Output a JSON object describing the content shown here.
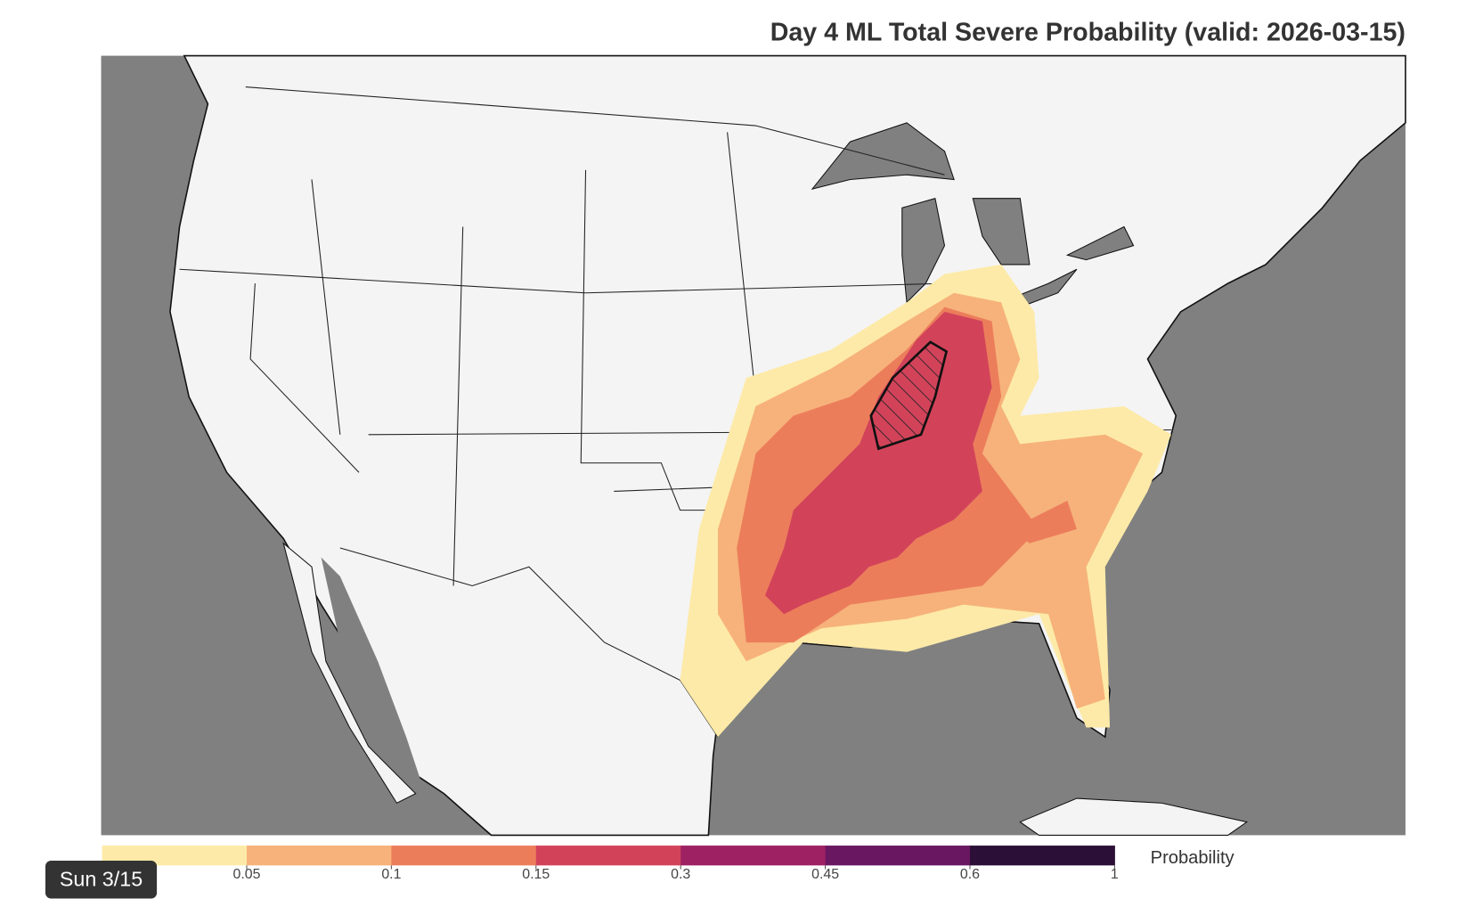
{
  "title": "Day 4 ML Total Severe Probability (valid: 2026-03-15)",
  "colorbar": {
    "label": "Probability",
    "ticks": [
      0.05,
      0.1,
      0.15,
      0.3,
      0.45,
      0.6,
      1
    ],
    "colors": [
      "#fdeaa8",
      "#f6b27a",
      "#ec7d5b",
      "#d2435a",
      "#9e2263",
      "#6a1762",
      "#2b0f36"
    ]
  },
  "badge": "Sun 3/15"
}
